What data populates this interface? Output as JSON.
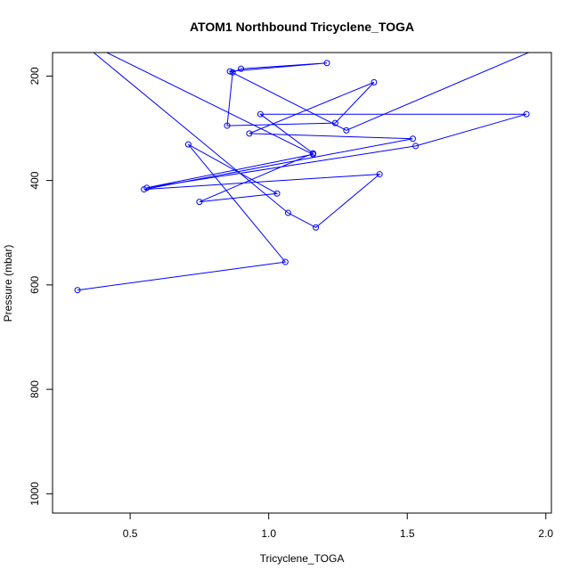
{
  "chart_data": {
    "type": "line",
    "title": "ATOM1 Northbound Tricyclene_TOGA",
    "xlabel": "Tricyclene_TOGA",
    "ylabel": "Pressure (mbar)",
    "xlim": [
      0.22,
      2.02
    ],
    "ylim": [
      1037,
      155
    ],
    "y_reversed": true,
    "x_ticks": [
      0.5,
      1.0,
      1.5,
      2.0
    ],
    "x_tick_labels": [
      "0.5",
      "1.0",
      "1.5",
      "2.0"
    ],
    "y_ticks": [
      200,
      400,
      600,
      800,
      1000
    ],
    "y_tick_labels": [
      "200",
      "400",
      "600",
      "800",
      "1000"
    ],
    "grid": false,
    "series": [
      {
        "color": "#0000ff",
        "marker": "open-circle",
        "points": [
          [
            0.06,
            20
          ],
          [
            1.07,
            462
          ],
          [
            1.17,
            490
          ],
          [
            1.4,
            388
          ],
          [
            0.55,
            417
          ],
          [
            1.52,
            320
          ],
          [
            0.93,
            310
          ],
          [
            1.38,
            212
          ],
          [
            1.24,
            290
          ],
          [
            0.85,
            295
          ],
          [
            0.87,
            193
          ],
          [
            0.9,
            186
          ],
          [
            1.21,
            175
          ],
          [
            0.86,
            191
          ],
          [
            1.28,
            304
          ],
          [
            1.96,
            150
          ],
          [
            2.05,
            100
          ]
        ]
      },
      {
        "color": "#0000ff",
        "marker": "open-circle",
        "points": [
          [
            0.31,
            610
          ],
          [
            1.06,
            556
          ],
          [
            0.71,
            331
          ],
          [
            1.03,
            425
          ],
          [
            0.75,
            441
          ],
          [
            1.16,
            348
          ],
          [
            0.97,
            273
          ],
          [
            1.93,
            273
          ],
          [
            1.53,
            334
          ],
          [
            0.56,
            414
          ],
          [
            1.16,
            350
          ],
          [
            0.32,
            130
          ]
        ]
      }
    ]
  }
}
